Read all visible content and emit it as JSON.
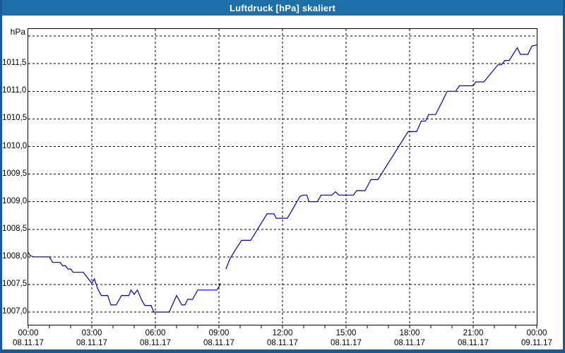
{
  "window": {
    "title": "Luftdruck [hPa] skaliert"
  },
  "colors": {
    "titlebar_bg": "#1e6ea7",
    "titlebar_text": "#ffffff",
    "window_border": "#185a96",
    "plot_background": "#ffffff",
    "grid_color": "#000000",
    "line_color": "#0000bb",
    "label_color": "#000000"
  },
  "chart_data": {
    "type": "line",
    "title": "Luftdruck [hPa] skaliert",
    "ylabel": "hPa",
    "xlabel": "",
    "grid": true,
    "legend_position": "none",
    "ylim": [
      1006.77,
      1012.13
    ],
    "xlim_hours": [
      0,
      24
    ],
    "minor_x_tick_hours": 1,
    "y_ticks": [
      {
        "value": 1012.0,
        "label": ""
      },
      {
        "value": 1011.5,
        "label": "1011,5"
      },
      {
        "value": 1011.0,
        "label": "1011,0"
      },
      {
        "value": 1010.5,
        "label": "1010,5"
      },
      {
        "value": 1010.0,
        "label": "1010,0"
      },
      {
        "value": 1009.5,
        "label": "1009,5"
      },
      {
        "value": 1009.0,
        "label": "1009,0"
      },
      {
        "value": 1008.5,
        "label": "1008,5"
      },
      {
        "value": 1008.0,
        "label": "1008,0"
      },
      {
        "value": 1007.5,
        "label": "1007,5"
      },
      {
        "value": 1007.0,
        "label": "1007,0"
      }
    ],
    "x_ticks": [
      {
        "hour": 0,
        "time": "00:00",
        "date": "08.11.17"
      },
      {
        "hour": 3,
        "time": "03:00",
        "date": "08.11.17"
      },
      {
        "hour": 6,
        "time": "06:00",
        "date": "08.11.17"
      },
      {
        "hour": 9,
        "time": "09:00",
        "date": "08.11.17"
      },
      {
        "hour": 12,
        "time": "12:00",
        "date": "08.11.17"
      },
      {
        "hour": 15,
        "time": "15:00",
        "date": "08.11.17"
      },
      {
        "hour": 18,
        "time": "18:00",
        "date": "08.11.17"
      },
      {
        "hour": 21,
        "time": "21:00",
        "date": "08.11.17"
      },
      {
        "hour": 24,
        "time": "00:00",
        "date": "09.11.17"
      }
    ],
    "series": [
      {
        "name": "Luftdruck [hPa]",
        "color": "#0000bb",
        "segments": [
          [
            [
              0.0,
              1008.08
            ],
            [
              0.1,
              1008.02
            ],
            [
              0.25,
              1008.0
            ],
            [
              1.0,
              1008.0
            ],
            [
              1.15,
              1007.9
            ],
            [
              1.5,
              1007.9
            ],
            [
              1.62,
              1007.84
            ],
            [
              1.75,
              1007.84
            ],
            [
              1.87,
              1007.78
            ],
            [
              2.0,
              1007.78
            ],
            [
              2.12,
              1007.72
            ],
            [
              2.6,
              1007.72
            ],
            [
              3.0,
              1007.52
            ],
            [
              3.12,
              1007.6
            ],
            [
              3.28,
              1007.42
            ],
            [
              3.45,
              1007.3
            ],
            [
              3.75,
              1007.3
            ],
            [
              3.9,
              1007.13
            ],
            [
              4.15,
              1007.13
            ],
            [
              4.4,
              1007.3
            ],
            [
              4.75,
              1007.3
            ],
            [
              4.85,
              1007.4
            ],
            [
              5.0,
              1007.32
            ],
            [
              5.15,
              1007.4
            ],
            [
              5.35,
              1007.22
            ],
            [
              5.5,
              1007.12
            ],
            [
              5.8,
              1007.12
            ],
            [
              5.92,
              1007.0
            ],
            [
              6.65,
              1007.0
            ],
            [
              7.0,
              1007.3
            ],
            [
              7.25,
              1007.13
            ],
            [
              7.4,
              1007.13
            ],
            [
              7.52,
              1007.23
            ],
            [
              7.75,
              1007.23
            ],
            [
              8.0,
              1007.4
            ],
            [
              8.9,
              1007.4
            ],
            [
              9.0,
              1007.46
            ],
            [
              9.08,
              1007.52
            ]
          ],
          [
            [
              9.33,
              1007.78
            ],
            [
              9.5,
              1007.95
            ],
            [
              9.67,
              1008.06
            ],
            [
              9.83,
              1008.16
            ],
            [
              10.07,
              1008.3
            ],
            [
              10.5,
              1008.3
            ],
            [
              11.27,
              1008.78
            ],
            [
              11.6,
              1008.78
            ],
            [
              11.7,
              1008.7
            ],
            [
              12.23,
              1008.7
            ],
            [
              12.83,
              1009.1
            ],
            [
              13.0,
              1009.12
            ],
            [
              13.15,
              1009.12
            ],
            [
              13.25,
              1009.0
            ],
            [
              13.65,
              1009.0
            ],
            [
              13.82,
              1009.12
            ],
            [
              14.33,
              1009.12
            ],
            [
              14.5,
              1009.18
            ],
            [
              14.65,
              1009.12
            ],
            [
              15.35,
              1009.12
            ],
            [
              15.5,
              1009.2
            ],
            [
              15.9,
              1009.2
            ],
            [
              16.17,
              1009.4
            ],
            [
              16.5,
              1009.4
            ],
            [
              17.93,
              1010.27
            ],
            [
              18.33,
              1010.27
            ],
            [
              18.55,
              1010.46
            ],
            [
              18.75,
              1010.46
            ],
            [
              18.9,
              1010.58
            ],
            [
              19.23,
              1010.58
            ],
            [
              19.57,
              1010.84
            ],
            [
              19.77,
              1011.0
            ],
            [
              20.17,
              1011.0
            ],
            [
              20.35,
              1011.1
            ],
            [
              21.0,
              1011.1
            ],
            [
              21.12,
              1011.17
            ],
            [
              21.5,
              1011.17
            ],
            [
              22.17,
              1011.48
            ],
            [
              22.33,
              1011.48
            ],
            [
              22.5,
              1011.56
            ],
            [
              22.7,
              1011.56
            ],
            [
              23.08,
              1011.79
            ],
            [
              23.23,
              1011.67
            ],
            [
              23.58,
              1011.67
            ],
            [
              23.77,
              1011.82
            ],
            [
              24.0,
              1011.84
            ]
          ]
        ]
      }
    ]
  }
}
